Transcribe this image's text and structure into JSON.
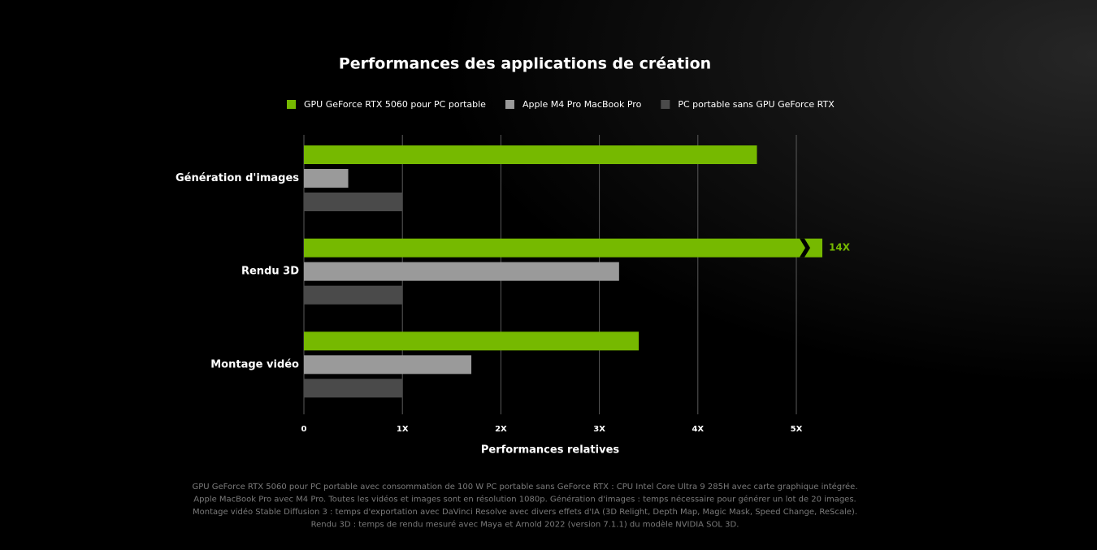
{
  "chart_data": {
    "type": "hbar",
    "title": "Performances des applications de création",
    "categories": [
      "Génération d'images",
      "Rendu 3D",
      "Montage vidéo"
    ],
    "series": [
      {
        "name": "GPU GeForce RTX 5060 pour PC portable",
        "color": "#76b900",
        "values": [
          4.6,
          14,
          3.4
        ],
        "value_labels": [
          null,
          "14X",
          null
        ]
      },
      {
        "name": "Apple M4 Pro MacBook Pro",
        "color": "#9a9a9a",
        "values": [
          0.45,
          3.2,
          1.7
        ]
      },
      {
        "name": "PC portable sans GPU GeForce RTX",
        "color": "#4a4a4a",
        "values": [
          1,
          1,
          1
        ]
      }
    ],
    "xlim": [
      0,
      5
    ],
    "xticks": [
      0,
      {
        "value": 1,
        "label": "1X"
      },
      {
        "value": 2,
        "label": "2X"
      },
      {
        "value": 3,
        "label": "3X"
      },
      {
        "value": 4,
        "label": "4X"
      },
      {
        "value": 5,
        "label": "5X"
      }
    ],
    "xlabel": "Performances relatives",
    "grid": true,
    "legend": "top",
    "notes": [
      "GPU GeForce RTX 5060 pour PC portable avec consommation de 100 W PC portable sans GeForce RTX : CPU Intel Core Ultra 9 285H avec carte graphique intégrée.",
      "Apple MacBook Pro avec M4 Pro. Toutes les vidéos et images sont en résolution 1080p. Génération d'images : temps nécessaire pour générer un lot de 20 images.",
      "Montage vidéo Stable Diffusion 3 : temps d'exportation avec DaVinci Resolve avec divers effets d'IA (3D Relight, Depth Map, Magic Mask, Speed Change, ReScale).",
      "Rendu 3D : temps de rendu mesuré avec Maya et Arnold 2022 (version 7.1.1) du modèle NVIDIA SOL 3D."
    ]
  }
}
